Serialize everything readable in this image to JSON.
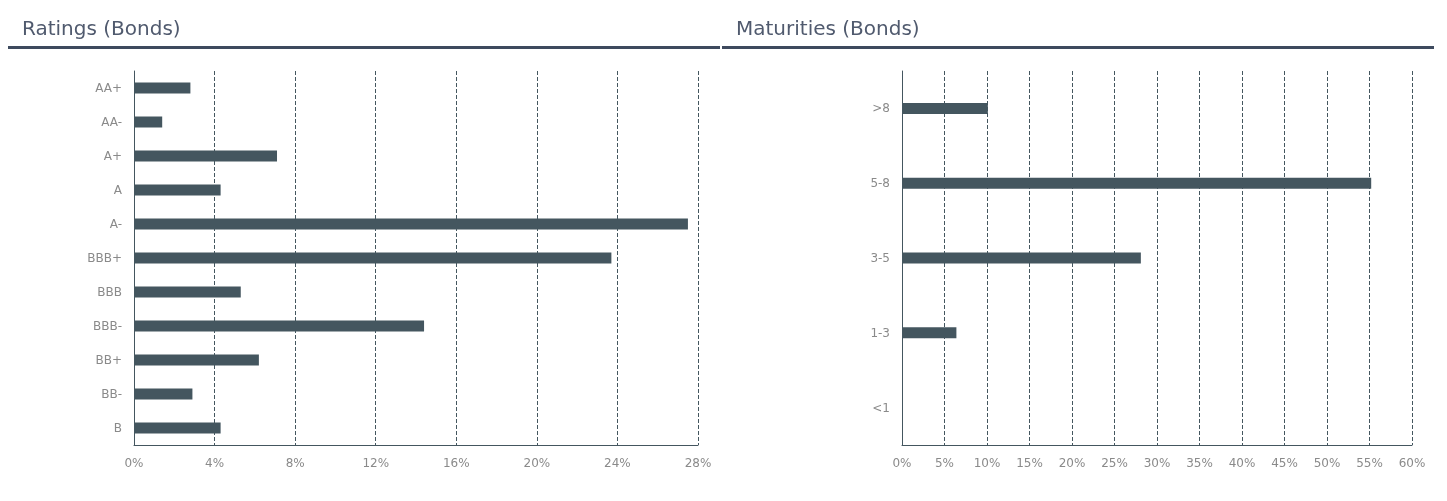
{
  "chart_data": [
    {
      "type": "bar",
      "title": "Ratings (Bonds)",
      "orientation": "horizontal",
      "categories": [
        "AA+",
        "AA-",
        "A+",
        "A",
        "A-",
        "BBB+",
        "BBB",
        "BBB-",
        "BB+",
        "BB-",
        "B"
      ],
      "values": [
        2.8,
        1.4,
        7.1,
        4.3,
        27.5,
        23.7,
        5.3,
        14.4,
        6.2,
        2.9,
        4.3
      ],
      "color": "#44565f",
      "xlim": [
        0,
        28
      ],
      "xticks": [
        {
          "value": 0,
          "label": "0%"
        },
        {
          "value": 4,
          "label": "4%"
        },
        {
          "value": 8,
          "label": "8%"
        },
        {
          "value": 12,
          "label": "12%"
        },
        {
          "value": 16,
          "label": "16%"
        },
        {
          "value": 20,
          "label": "20%"
        },
        {
          "value": 24,
          "label": "24%"
        },
        {
          "value": 28,
          "label": "28%"
        }
      ],
      "grid": "x"
    },
    {
      "type": "bar",
      "title": "Maturities (Bonds)",
      "orientation": "horizontal",
      "categories": [
        ">8",
        "5-8",
        "3-5",
        "1-3",
        "<1"
      ],
      "values": [
        10.1,
        55.2,
        28.1,
        6.4,
        0
      ],
      "color": "#44565f",
      "xlim": [
        0,
        60
      ],
      "xticks": [
        {
          "value": 0,
          "label": "0%"
        },
        {
          "value": 5,
          "label": "5%"
        },
        {
          "value": 10,
          "label": "10%"
        },
        {
          "value": 15,
          "label": "15%"
        },
        {
          "value": 20,
          "label": "20%"
        },
        {
          "value": 25,
          "label": "25%"
        },
        {
          "value": 30,
          "label": "30%"
        },
        {
          "value": 35,
          "label": "35%"
        },
        {
          "value": 40,
          "label": "40%"
        },
        {
          "value": 45,
          "label": "45%"
        },
        {
          "value": 50,
          "label": "50%"
        },
        {
          "value": 55,
          "label": "55%"
        },
        {
          "value": 60,
          "label": "60%"
        }
      ],
      "grid": "x"
    }
  ]
}
